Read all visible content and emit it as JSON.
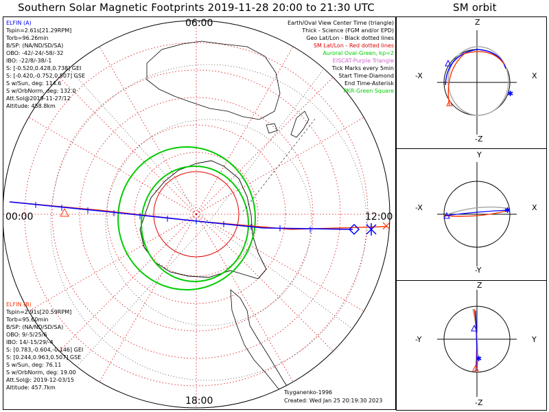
{
  "title": "Southern Solar Magnetic Footprints 2019-11-28 20:00 to 21:30 UTC",
  "orbit_title": "SM orbit",
  "colors": {
    "elfin_a": "#0000ff",
    "elfin_b": "#ff3300",
    "oval": "#00cc00",
    "grid_red": "#dd0000",
    "grid_black": "#000000",
    "purple": "#cc66cc"
  },
  "hour_labels": {
    "top": "06:00",
    "left": "00:00",
    "right": "12:00",
    "bottom": "18:00"
  },
  "elfin_a": {
    "name": "ELFIN (A)",
    "lines": [
      "Tspin=2.61s[21.29RPM]",
      "Torb=96.26min",
      "B/SP: (NA/ND/SD/SA)",
      "OBO: -42/-24/-58/-32",
      "IBO: -22/8/-38/-1",
      "S: [-0.520,0.428,0.738] GEI",
      "S: [-0.420,-0.752,0.507] GSE",
      "S w/Sun, deg: 114.6",
      "S w/OrbNorm, deg: 132.0",
      "Att.Sol@2019-11-27/12",
      "Altitude: 458.8km"
    ]
  },
  "elfin_b": {
    "name": "ELFIN (B)",
    "lines": [
      "Tspin=2.91s[20.59RPM]",
      "Torb=95.60min",
      "B/SP: (NA/ND/SD/SA)",
      "OBO: 9/-5/25/6",
      "IBO: 14/-15/29/-4",
      "S: [0.783,-0.604,-0.146] GEI",
      "S: [0.244,0.963,0.507] GSE",
      "S w/Sun, deg: 76.11",
      "S w/OrbNorm, deg: 19.00",
      "Att.Sol@: 2019-12-03/15",
      "Altitude: 457.7km"
    ]
  },
  "legend": [
    {
      "text": "Earth/Oval View Center Time (triangle)",
      "color": "#000000"
    },
    {
      "text": "Thick - Science (FGM and/or EPD)",
      "color": "#000000"
    },
    {
      "text": "Geo Lat/Lon - Black dotted lines",
      "color": "#000000"
    },
    {
      "text": "SM Lat/Lon - Red dotted lines",
      "color": "#dd0000"
    },
    {
      "text": "Auroral Oval-Green, kp=2",
      "color": "#00cc00"
    },
    {
      "text": "EISCAT-Purple Triangle",
      "color": "#cc66cc"
    },
    {
      "text": "Tick Marks every 5min",
      "color": "#000000"
    },
    {
      "text": "Start Time-Diamond",
      "color": "#000000"
    },
    {
      "text": "End Time-Asterisk",
      "color": "#000000"
    },
    {
      "text": "PKR-Green Square",
      "color": "#00cc00"
    }
  ],
  "credits": {
    "author": "Tsyganenko-1996",
    "created": "Created: Wed Jan 25 20:19:30 2023"
  },
  "panels": [
    {
      "top": "Z",
      "bottom": "-Z",
      "left": "-X",
      "right": "X"
    },
    {
      "top": "Y",
      "bottom": "-Y",
      "left": "-X",
      "right": "X"
    },
    {
      "top": "Z",
      "bottom": "-Z",
      "left": "-Y",
      "right": "Y"
    }
  ]
}
